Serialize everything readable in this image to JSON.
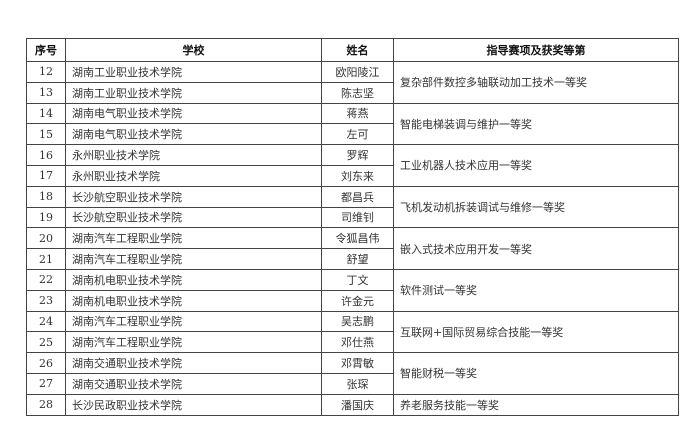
{
  "headers": {
    "index": "序号",
    "school": "学校",
    "name": "姓名",
    "award": "指导赛项及获奖等第"
  },
  "rows": [
    {
      "index": "12",
      "school": "湖南工业职业技术学院",
      "name": "欧阳陵江"
    },
    {
      "index": "13",
      "school": "湖南工业职业技术学院",
      "name": "陈志坚"
    },
    {
      "index": "14",
      "school": "湖南电气职业技术学院",
      "name": "蒋燕"
    },
    {
      "index": "15",
      "school": "湖南电气职业技术学院",
      "name": "左可"
    },
    {
      "index": "16",
      "school": "永州职业技术学院",
      "name": "罗辉"
    },
    {
      "index": "17",
      "school": "永州职业技术学院",
      "name": "刘东来"
    },
    {
      "index": "18",
      "school": "长沙航空职业技术学院",
      "name": "都昌兵"
    },
    {
      "index": "19",
      "school": "长沙航空职业技术学院",
      "name": "司维钊"
    },
    {
      "index": "20",
      "school": "湖南汽车工程职业学院",
      "name": "令狐昌伟"
    },
    {
      "index": "21",
      "school": "湖南汽车工程职业学院",
      "name": "舒望"
    },
    {
      "index": "22",
      "school": "湖南机电职业技术学院",
      "name": "丁文"
    },
    {
      "index": "23",
      "school": "湖南机电职业技术学院",
      "name": "许金元"
    },
    {
      "index": "24",
      "school": "湖南汽车工程职业学院",
      "name": "吴志鹏"
    },
    {
      "index": "25",
      "school": "湖南汽车工程职业学院",
      "name": "邓仕燕"
    },
    {
      "index": "26",
      "school": "湖南交通职业技术学院",
      "name": "邓霄敏"
    },
    {
      "index": "27",
      "school": "湖南交通职业技术学院",
      "name": "张琛"
    },
    {
      "index": "28",
      "school": "长沙民政职业技术学院",
      "name": "潘国庆"
    }
  ],
  "awards": [
    {
      "label": "复杂部件数控多轴联动加工技术一等奖",
      "span": 2
    },
    {
      "label": "智能电梯装调与维护一等奖",
      "span": 2
    },
    {
      "label": "工业机器人技术应用一等奖",
      "span": 2
    },
    {
      "label": "飞机发动机拆装调试与维修一等奖",
      "span": 2
    },
    {
      "label": "嵌入式技术应用开发一等奖",
      "span": 2
    },
    {
      "label": "软件测试一等奖",
      "span": 2
    },
    {
      "label": "互联网+国际贸易综合技能一等奖",
      "span": 2
    },
    {
      "label": "智能财税一等奖",
      "span": 2
    },
    {
      "label": "养老服务技能一等奖",
      "span": 1
    }
  ]
}
